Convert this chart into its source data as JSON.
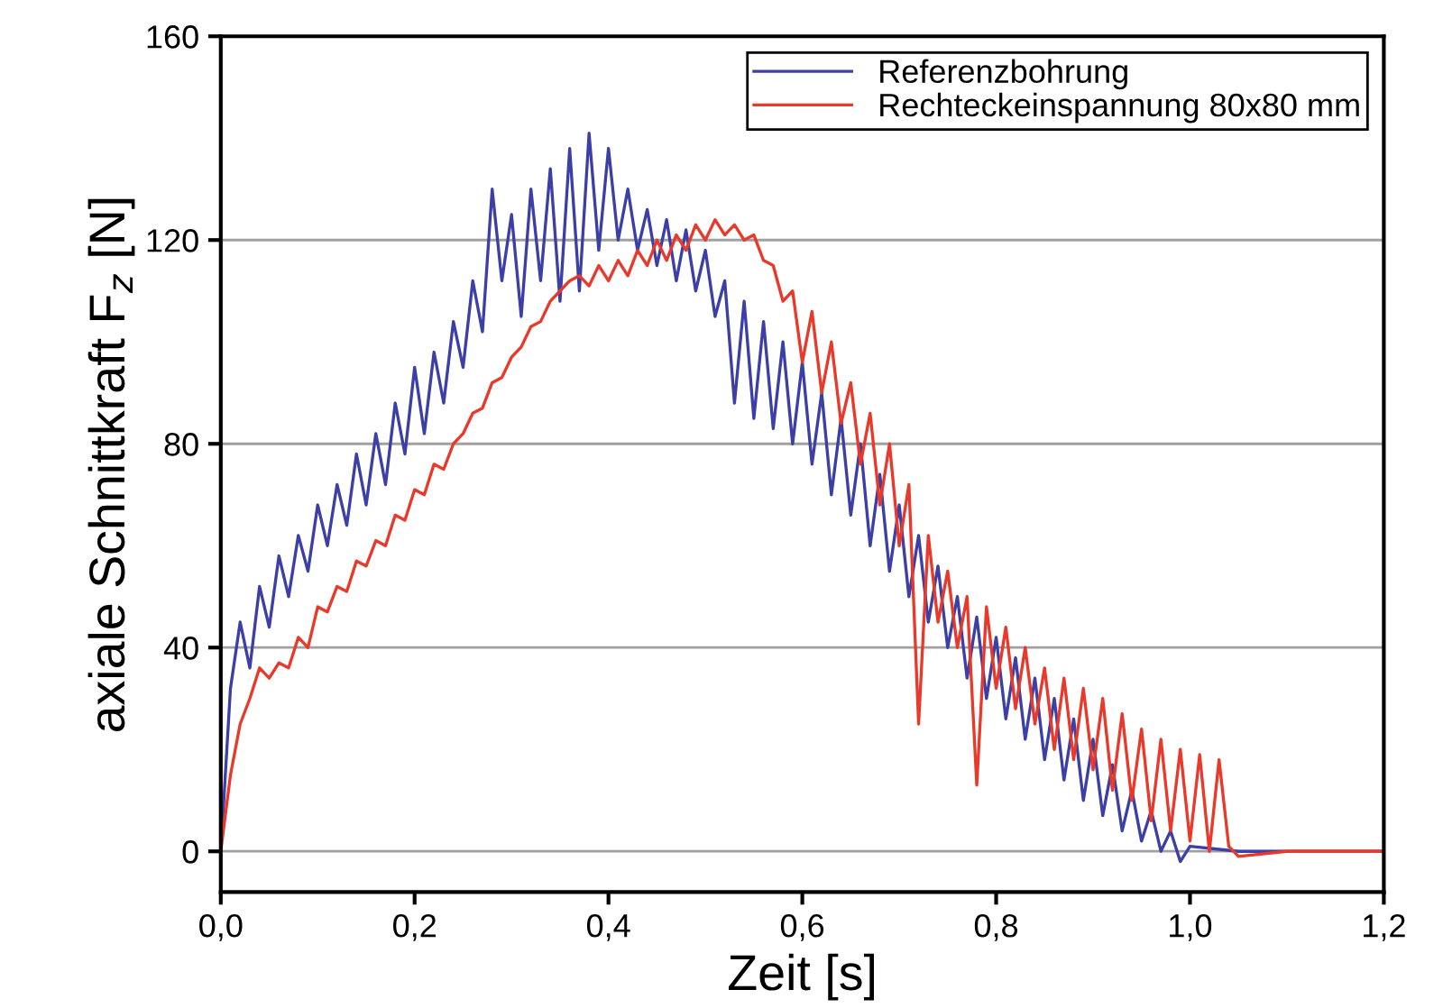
{
  "chart_data": {
    "type": "line",
    "xlabel": "Zeit [s]",
    "ylabel": "axiale Schnittkraft F$_{z}$ [N]",
    "xlim": [
      0,
      1.2
    ],
    "ylim": [
      -8,
      160
    ],
    "xticks": [
      {
        "value": 0,
        "label": "0,0"
      },
      {
        "value": 0.2,
        "label": "0,2"
      },
      {
        "value": 0.4,
        "label": "0,4"
      },
      {
        "value": 0.6,
        "label": "0,6"
      },
      {
        "value": 0.8,
        "label": "0,8"
      },
      {
        "value": 1.0,
        "label": "1,0"
      },
      {
        "value": 1.2,
        "label": "1,2"
      }
    ],
    "yticks": [
      0,
      40,
      80,
      120,
      160
    ],
    "grid": "y",
    "legend": "top right",
    "series": [
      {
        "name": "Referenzbohrung",
        "color": "#3b3fa6",
        "x": [
          0,
          0.01,
          0.02,
          0.03,
          0.04,
          0.05,
          0.06,
          0.07,
          0.08,
          0.09,
          0.1,
          0.11,
          0.12,
          0.13,
          0.14,
          0.15,
          0.16,
          0.17,
          0.18,
          0.19,
          0.2,
          0.21,
          0.22,
          0.23,
          0.24,
          0.25,
          0.26,
          0.27,
          0.28,
          0.29,
          0.3,
          0.31,
          0.32,
          0.33,
          0.34,
          0.35,
          0.36,
          0.37,
          0.38,
          0.39,
          0.4,
          0.41,
          0.42,
          0.43,
          0.44,
          0.45,
          0.46,
          0.47,
          0.48,
          0.49,
          0.5,
          0.51,
          0.52,
          0.53,
          0.54,
          0.55,
          0.56,
          0.57,
          0.58,
          0.59,
          0.6,
          0.61,
          0.62,
          0.63,
          0.64,
          0.65,
          0.66,
          0.67,
          0.68,
          0.69,
          0.7,
          0.71,
          0.72,
          0.73,
          0.74,
          0.75,
          0.76,
          0.77,
          0.78,
          0.79,
          0.8,
          0.81,
          0.82,
          0.83,
          0.84,
          0.85,
          0.86,
          0.87,
          0.88,
          0.89,
          0.9,
          0.91,
          0.92,
          0.93,
          0.94,
          0.95,
          0.96,
          0.97,
          0.98,
          0.99,
          1.0,
          1.05,
          1.1,
          1.15,
          1.2
        ],
        "values": [
          0,
          32,
          45,
          36,
          52,
          44,
          58,
          50,
          62,
          55,
          68,
          60,
          72,
          64,
          78,
          68,
          82,
          72,
          88,
          78,
          95,
          82,
          98,
          88,
          104,
          95,
          112,
          102,
          130,
          112,
          125,
          105,
          130,
          112,
          134,
          108,
          138,
          110,
          141,
          118,
          138,
          120,
          130,
          118,
          126,
          115,
          124,
          112,
          122,
          110,
          118,
          105,
          112,
          88,
          108,
          85,
          104,
          83,
          100,
          80,
          96,
          76,
          90,
          70,
          85,
          66,
          80,
          60,
          74,
          55,
          68,
          50,
          62,
          45,
          56,
          40,
          50,
          34,
          46,
          30,
          42,
          26,
          38,
          22,
          34,
          18,
          30,
          14,
          26,
          10,
          22,
          7,
          17,
          4,
          12,
          2,
          8,
          0,
          4,
          -2,
          1,
          0,
          0,
          0,
          0
        ]
      },
      {
        "name": "Rechteckeinspannung 80x80 mm",
        "color": "#e8392b",
        "x": [
          0,
          0.01,
          0.02,
          0.03,
          0.04,
          0.05,
          0.06,
          0.07,
          0.08,
          0.09,
          0.1,
          0.11,
          0.12,
          0.13,
          0.14,
          0.15,
          0.16,
          0.17,
          0.18,
          0.19,
          0.2,
          0.21,
          0.22,
          0.23,
          0.24,
          0.25,
          0.26,
          0.27,
          0.28,
          0.29,
          0.3,
          0.31,
          0.32,
          0.33,
          0.34,
          0.35,
          0.36,
          0.37,
          0.38,
          0.39,
          0.4,
          0.41,
          0.42,
          0.43,
          0.44,
          0.45,
          0.46,
          0.47,
          0.48,
          0.49,
          0.5,
          0.51,
          0.52,
          0.53,
          0.54,
          0.55,
          0.56,
          0.57,
          0.58,
          0.59,
          0.6,
          0.61,
          0.62,
          0.63,
          0.64,
          0.65,
          0.66,
          0.67,
          0.68,
          0.69,
          0.7,
          0.71,
          0.72,
          0.73,
          0.74,
          0.75,
          0.76,
          0.77,
          0.78,
          0.79,
          0.8,
          0.81,
          0.82,
          0.83,
          0.84,
          0.85,
          0.86,
          0.87,
          0.88,
          0.89,
          0.9,
          0.91,
          0.92,
          0.93,
          0.94,
          0.95,
          0.96,
          0.97,
          0.98,
          0.99,
          1.0,
          1.01,
          1.02,
          1.03,
          1.04,
          1.05,
          1.1,
          1.15,
          1.2
        ],
        "values": [
          0,
          15,
          25,
          30,
          36,
          34,
          37,
          36,
          42,
          40,
          48,
          47,
          52,
          51,
          57,
          56,
          61,
          60,
          66,
          65,
          71,
          70,
          76,
          75,
          80,
          82,
          86,
          87,
          92,
          93,
          97,
          99,
          103,
          104,
          108,
          110,
          112,
          113,
          111,
          115,
          112,
          116,
          113,
          118,
          115,
          120,
          116,
          121,
          118,
          123,
          120,
          124,
          121,
          123,
          120,
          121,
          116,
          115,
          108,
          110,
          96,
          106,
          90,
          100,
          84,
          92,
          76,
          86,
          68,
          80,
          60,
          72,
          25,
          62,
          45,
          55,
          40,
          50,
          13,
          48,
          32,
          44,
          28,
          40,
          25,
          36,
          20,
          34,
          18,
          32,
          16,
          30,
          12,
          27,
          10,
          24,
          6,
          22,
          4,
          20,
          2,
          19,
          0,
          18,
          1,
          -1,
          0,
          0,
          0
        ]
      }
    ]
  }
}
